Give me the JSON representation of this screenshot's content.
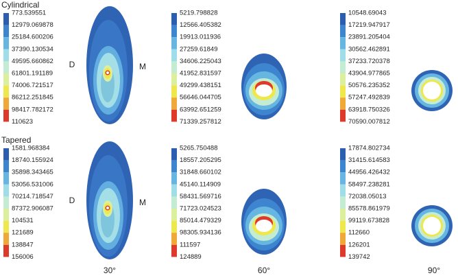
{
  "rows": [
    {
      "label": "Cylindrical",
      "legends": [
        [
          "773.539551",
          "12979.069878",
          "25184.600206",
          "37390.130534",
          "49595.660862",
          "61801.191189",
          "74006.721517",
          "86212.251845",
          "98417.782172",
          "110623"
        ],
        [
          "5219.798828",
          "12566.405382",
          "19913.011936",
          "27259.61849",
          "34606.225043",
          "41952.831597",
          "49299.438151",
          "56646.044705",
          "63992.651259",
          "71339.257812"
        ],
        [
          "10548.69043",
          "17219.947917",
          "23891.205404",
          "30562.462891",
          "37233.720378",
          "43904.977865",
          "50576.235352",
          "57247.492839",
          "63918.750326",
          "70590.007812"
        ]
      ],
      "side_labels": [
        "D",
        "M"
      ]
    },
    {
      "label": "Tapered",
      "legends": [
        [
          "1581.968384",
          "18740.155924",
          "35898.343465",
          "53056.531006",
          "70214.718547",
          "87372.906087",
          "104531",
          "121689",
          "138847",
          "156006"
        ],
        [
          "5265.750488",
          "18557.205295",
          "31848.660102",
          "45140.114909",
          "58431.569716",
          "71723.024523",
          "85014.479329",
          "98305.934136",
          "111597",
          "124889"
        ],
        [
          "17874.802734",
          "31415.614583",
          "44956.426432",
          "58497.238281",
          "72038.05013",
          "85578.861979",
          "99119.673828",
          "112660",
          "126201",
          "139742"
        ]
      ],
      "side_labels": [
        "D",
        "M"
      ]
    }
  ],
  "angles": [
    "30°",
    "60°",
    "90°"
  ],
  "legend_colors": [
    "#2b5eae",
    "#3d86cf",
    "#67b6e2",
    "#9fdde9",
    "#c4ecd2",
    "#dcef9c",
    "#eee84c",
    "#f0a838",
    "#de3a2c"
  ]
}
